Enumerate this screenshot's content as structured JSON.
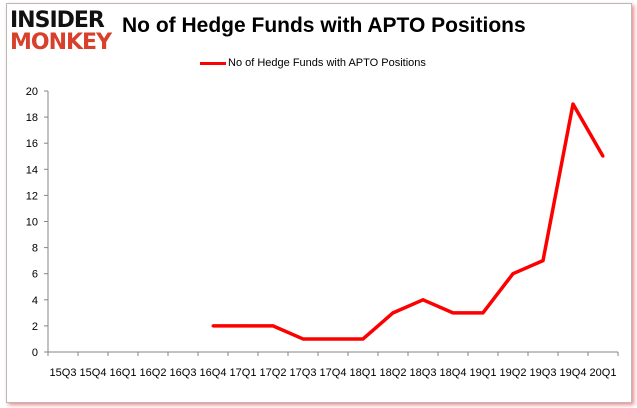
{
  "logo": {
    "line1": "INSIDER",
    "line2": "MONKEY"
  },
  "chart_data": {
    "type": "line",
    "title": "No of Hedge Funds with APTO Positions",
    "categories": [
      "15Q3",
      "15Q4",
      "16Q1",
      "16Q2",
      "16Q3",
      "16Q4",
      "17Q1",
      "17Q2",
      "17Q3",
      "17Q4",
      "18Q1",
      "18Q2",
      "18Q3",
      "18Q4",
      "19Q1",
      "19Q2",
      "19Q3",
      "19Q4",
      "20Q1"
    ],
    "series": [
      {
        "name": "No of Hedge Funds with APTO Positions",
        "color": "#ff0000",
        "values": [
          null,
          null,
          null,
          null,
          null,
          2,
          2,
          2,
          1,
          1,
          1,
          3,
          4,
          3,
          3,
          6,
          7,
          19,
          15
        ]
      }
    ],
    "ylim": [
      0,
      20
    ],
    "yticks": [
      0,
      2,
      4,
      6,
      8,
      10,
      12,
      14,
      16,
      18,
      20
    ],
    "xlabel": "",
    "ylabel": "",
    "grid": false,
    "legend": "top-center"
  }
}
